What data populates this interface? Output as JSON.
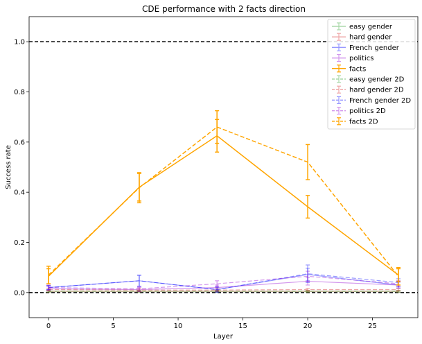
{
  "chart_data": {
    "type": "line",
    "title": "CDE performance with 2 facts direction",
    "xlabel": "Layer",
    "ylabel": "Success rate",
    "xlim": [
      -1.5,
      28.5
    ],
    "ylim": [
      -0.1,
      1.1
    ],
    "x_ticks": [
      0,
      5,
      10,
      15,
      20,
      25
    ],
    "y_ticks": [
      0.0,
      0.2,
      0.4,
      0.6,
      0.8,
      1.0
    ],
    "reference_lines": [
      1.0,
      0.0
    ],
    "legend_position": "top-right",
    "grid": false,
    "x": [
      0,
      7,
      13,
      20,
      27
    ],
    "series": [
      {
        "name": "easy gender",
        "color": "#2ca02c",
        "alpha": 0.4,
        "dashed": false,
        "values": [
          0.005,
          0.005,
          0.005,
          0.005,
          0.005
        ],
        "err": [
          0.003,
          0.003,
          0.003,
          0.003,
          0.003
        ]
      },
      {
        "name": "hard gender",
        "color": "#d62728",
        "alpha": 0.4,
        "dashed": false,
        "values": [
          0.005,
          0.005,
          0.005,
          0.005,
          0.005
        ],
        "err": [
          0.003,
          0.003,
          0.003,
          0.003,
          0.003
        ]
      },
      {
        "name": "French gender",
        "color": "#0000ff",
        "alpha": 0.4,
        "dashed": false,
        "values": [
          0.02,
          0.047,
          0.012,
          0.072,
          0.03
        ],
        "err": [
          0.008,
          0.022,
          0.01,
          0.025,
          0.012
        ]
      },
      {
        "name": "politics",
        "color": "#9400d3",
        "alpha": 0.4,
        "dashed": false,
        "values": [
          0.015,
          0.012,
          0.02,
          0.045,
          0.03
        ],
        "err": [
          0.008,
          0.008,
          0.01,
          0.015,
          0.012
        ]
      },
      {
        "name": "facts",
        "color": "#ffa500",
        "alpha": 1.0,
        "dashed": false,
        "values": [
          0.065,
          0.42,
          0.625,
          0.342,
          0.07
        ],
        "err": [
          0.03,
          0.055,
          0.065,
          0.045,
          0.025
        ]
      },
      {
        "name": "easy gender 2D",
        "color": "#2ca02c",
        "alpha": 0.4,
        "dashed": true,
        "values": [
          0.005,
          0.005,
          0.005,
          0.005,
          0.005
        ],
        "err": [
          0.003,
          0.003,
          0.003,
          0.003,
          0.003
        ]
      },
      {
        "name": "hard gender 2D",
        "color": "#d62728",
        "alpha": 0.4,
        "dashed": true,
        "values": [
          0.012,
          0.01,
          0.01,
          0.012,
          0.012
        ],
        "err": [
          0.005,
          0.005,
          0.005,
          0.005,
          0.005
        ]
      },
      {
        "name": "French gender 2D",
        "color": "#0000ff",
        "alpha": 0.4,
        "dashed": true,
        "values": [
          0.02,
          0.047,
          0.012,
          0.075,
          0.04
        ],
        "err": [
          0.008,
          0.022,
          0.01,
          0.035,
          0.015
        ]
      },
      {
        "name": "politics 2D",
        "color": "#9400d3",
        "alpha": 0.4,
        "dashed": true,
        "values": [
          0.02,
          0.015,
          0.035,
          0.065,
          0.035
        ],
        "err": [
          0.01,
          0.01,
          0.012,
          0.02,
          0.012
        ]
      },
      {
        "name": "facts 2D",
        "color": "#ffa500",
        "alpha": 1.0,
        "dashed": true,
        "values": [
          0.07,
          0.418,
          0.66,
          0.52,
          0.065
        ],
        "err": [
          0.035,
          0.06,
          0.065,
          0.07,
          0.035
        ]
      }
    ]
  }
}
